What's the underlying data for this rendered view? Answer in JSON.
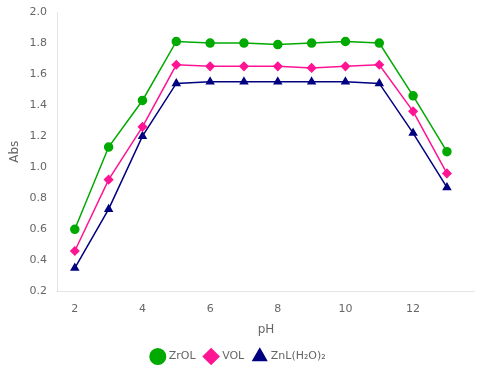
{
  "chart_data": {
    "type": "line",
    "xlabel": "pH",
    "ylabel": "Abs",
    "xlim": [
      1.5,
      13.8
    ],
    "ylim": [
      0.2,
      2.0
    ],
    "xticks": [
      2,
      4,
      6,
      8,
      10,
      12
    ],
    "yticks": [
      0.2,
      0.4,
      0.6,
      0.8,
      {
        "value": 1.0,
        "label": "1.0"
      },
      1.2,
      1.4,
      1.6,
      1.8,
      {
        "value": 2.0,
        "label": "2.0"
      }
    ],
    "grid": false,
    "legend": "lower center",
    "x": [
      2,
      3,
      4,
      5,
      6,
      7,
      8,
      9,
      10,
      11,
      12,
      13
    ],
    "series": [
      {
        "name": "ZrOL",
        "color": "#00aa00",
        "marker": "circle",
        "values": [
          0.6,
          1.13,
          1.43,
          1.81,
          1.8,
          1.8,
          1.79,
          1.8,
          1.81,
          1.8,
          1.46,
          1.1
        ]
      },
      {
        "name": "VOL",
        "color": "#ff1493",
        "marker": "diamond",
        "values": [
          0.46,
          0.92,
          1.26,
          1.66,
          1.65,
          1.65,
          1.65,
          1.64,
          1.65,
          1.66,
          1.36,
          0.96
        ]
      },
      {
        "name": "ZnL(H₂O)₂",
        "color": "#000080",
        "marker": "triangle",
        "values": [
          0.35,
          0.73,
          1.2,
          1.54,
          1.55,
          1.55,
          1.55,
          1.55,
          1.55,
          1.54,
          1.22,
          0.87
        ]
      }
    ]
  }
}
